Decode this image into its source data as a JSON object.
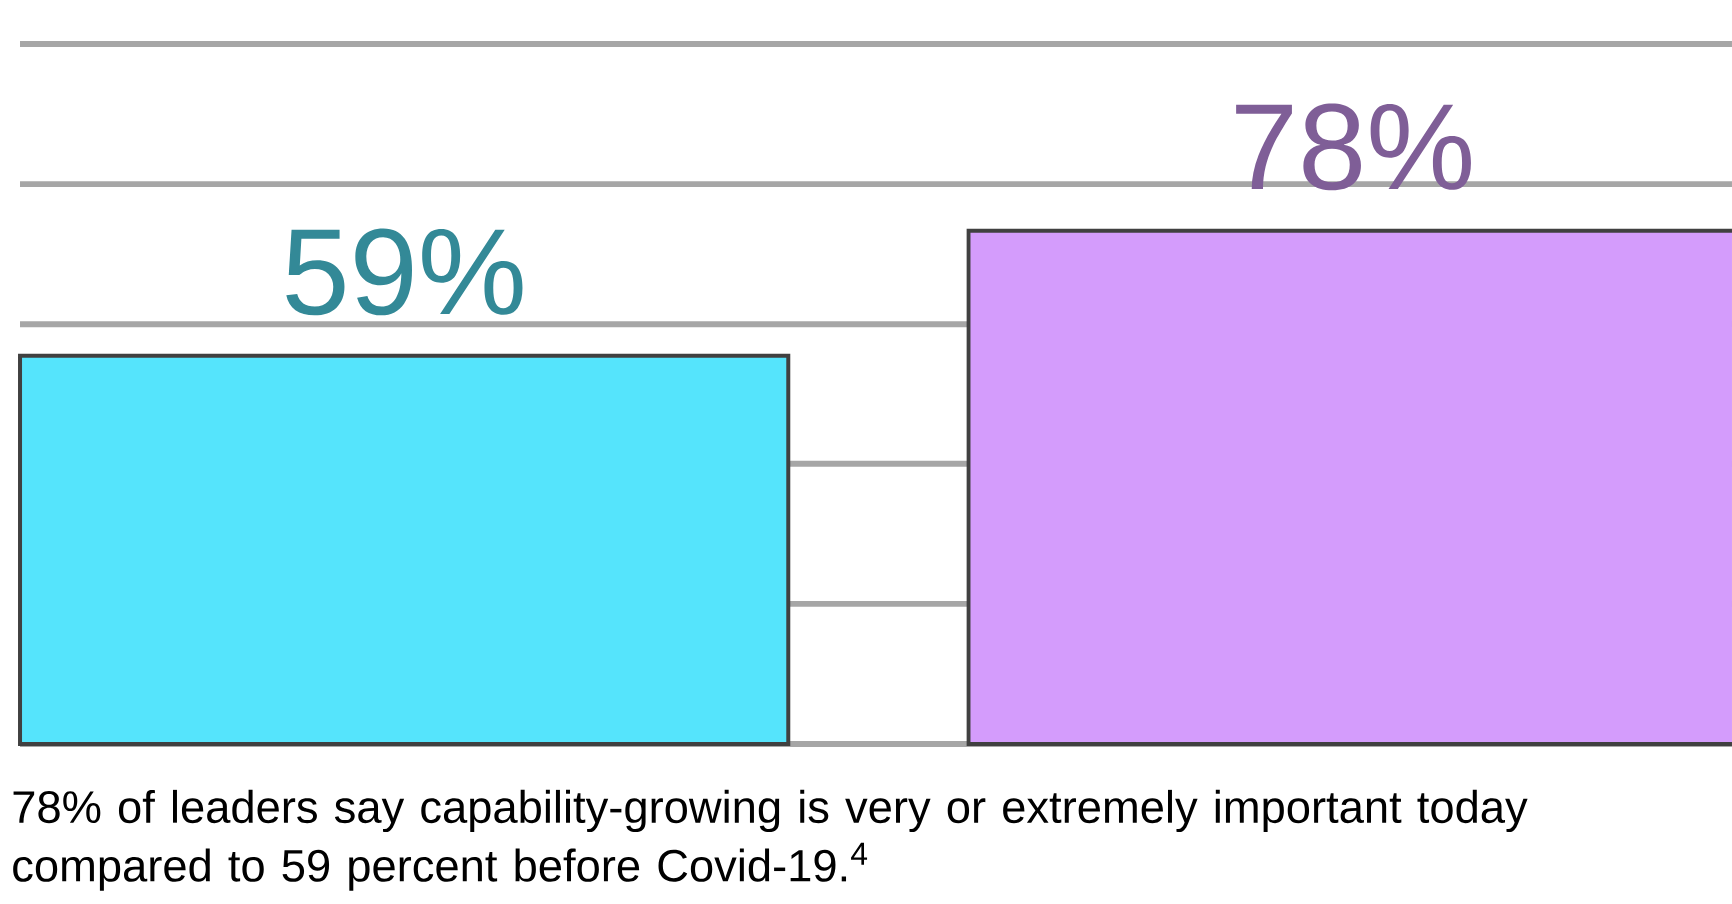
{
  "chart_data": {
    "type": "bar",
    "categories": [
      null,
      null
    ],
    "values": [
      59,
      78
    ],
    "colors": [
      "#55e4fc",
      "#d49cfc"
    ],
    "value_labels": [
      "59%",
      "78%"
    ],
    "yticks": [
      {
        "value": 0,
        "label": null
      },
      {
        "value": 21.3,
        "label": null
      },
      {
        "value": 42.6,
        "label": null
      },
      {
        "value": 63.8,
        "label": null
      },
      {
        "value": 85.1,
        "label": null
      },
      {
        "value": 106.4,
        "label": null
      }
    ],
    "grid": "y",
    "annotations": [
      "78% of leaders say capability-growing is very or extremely important today compared to 59 percent before Covid-19.$^{4}$"
    ]
  }
}
